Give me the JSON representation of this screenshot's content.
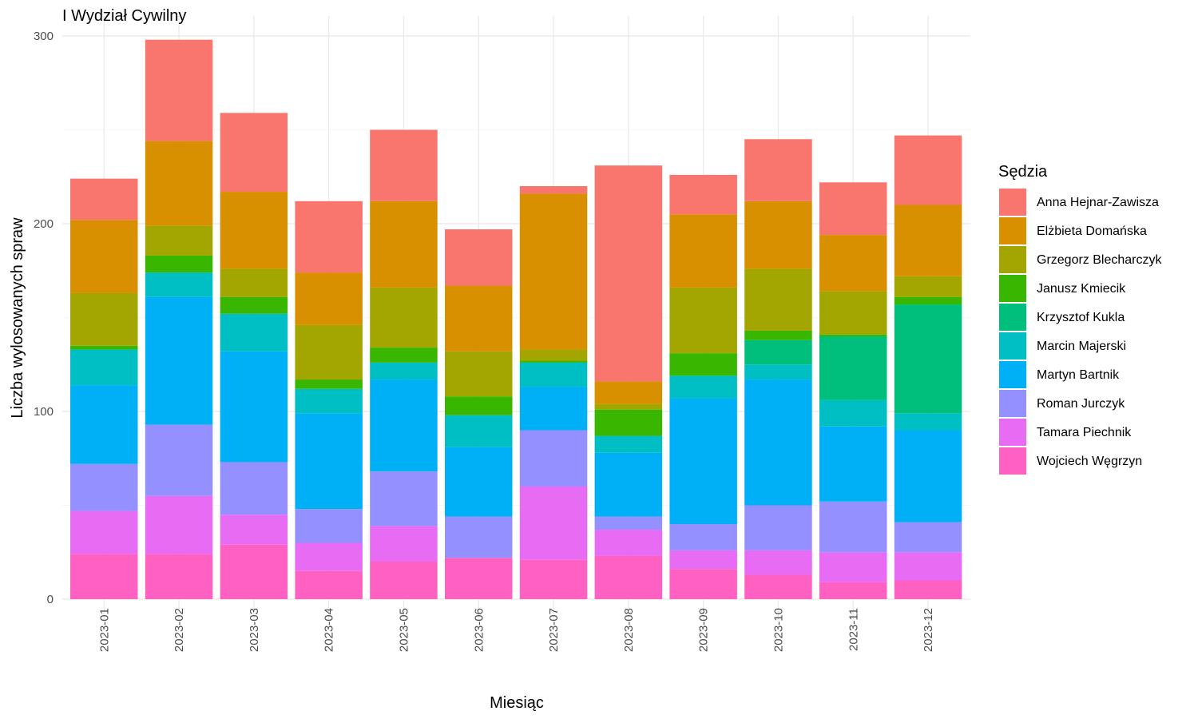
{
  "chart_data": {
    "type": "bar",
    "stacked": true,
    "title": "I Wydział Cywilny",
    "xlabel": "Miesiąc",
    "ylabel": "Liczba wylosowanych spraw",
    "ylim": [
      0,
      300
    ],
    "yticks": [
      0,
      100,
      200,
      300
    ],
    "grid": true,
    "legend": {
      "title": "Sędzia",
      "position": "right"
    },
    "categories": [
      "2023-01",
      "2023-02",
      "2023-03",
      "2023-04",
      "2023-05",
      "2023-06",
      "2023-07",
      "2023-08",
      "2023-09",
      "2023-10",
      "2023-11",
      "2023-12"
    ],
    "series": [
      {
        "name": "Wojciech Węgrzyn",
        "color": "#FF61C3",
        "values": [
          24,
          24,
          29,
          15,
          20,
          22,
          21,
          23,
          16,
          13,
          9,
          10
        ]
      },
      {
        "name": "Tamara Piechnik",
        "color": "#E76BF3",
        "values": [
          23,
          31,
          16,
          15,
          19,
          0,
          39,
          14,
          10,
          13,
          16,
          15
        ]
      },
      {
        "name": "Roman Jurczyk",
        "color": "#9590FF",
        "values": [
          25,
          38,
          28,
          18,
          29,
          22,
          30,
          7,
          14,
          24,
          27,
          16
        ]
      },
      {
        "name": "Martyn Bartnik",
        "color": "#00B0F6",
        "values": [
          42,
          68,
          59,
          51,
          49,
          37,
          23,
          34,
          67,
          67,
          40,
          49
        ]
      },
      {
        "name": "Marcin Majerski",
        "color": "#00BFC4",
        "values": [
          19,
          13,
          20,
          13,
          9,
          17,
          13,
          9,
          12,
          8,
          14,
          9
        ]
      },
      {
        "name": "Krzysztof Kukla",
        "color": "#00BF7D",
        "values": [
          0,
          0,
          0,
          0,
          0,
          0,
          0,
          0,
          0,
          13,
          34,
          58
        ]
      },
      {
        "name": "Janusz Kmiecik",
        "color": "#39B600",
        "values": [
          2,
          9,
          9,
          5,
          8,
          10,
          1,
          14,
          12,
          5,
          1,
          4
        ]
      },
      {
        "name": "Grzegorz Blecharczyk",
        "color": "#A3A500",
        "values": [
          28,
          16,
          15,
          29,
          32,
          24,
          6,
          3,
          35,
          33,
          23,
          11
        ]
      },
      {
        "name": "Elżbieta Domańska",
        "color": "#D89000",
        "values": [
          39,
          45,
          41,
          28,
          46,
          35,
          83,
          12,
          39,
          36,
          30,
          38
        ]
      },
      {
        "name": "Anna Hejnar-Zawisza",
        "color": "#F8766D",
        "values": [
          22,
          54,
          42,
          38,
          38,
          30,
          4,
          115,
          21,
          33,
          28,
          37
        ]
      }
    ]
  }
}
